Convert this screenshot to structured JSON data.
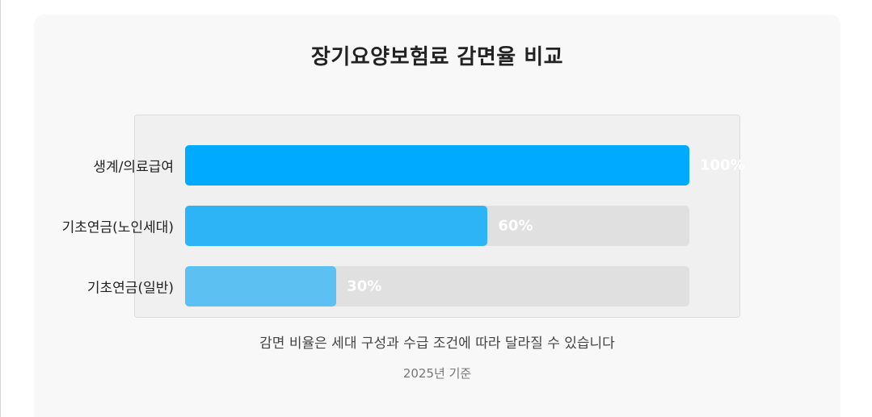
{
  "chart_data": {
    "type": "bar",
    "orientation": "horizontal",
    "title": "장기요양보험료 감면율 비교",
    "categories": [
      "생계/의료급여",
      "기초연금(노인세대)",
      "기초연금(일반)"
    ],
    "values": [
      100,
      60,
      30
    ],
    "value_labels": [
      "100%",
      "60%",
      "30%"
    ],
    "xlim": [
      0,
      100
    ],
    "colors": [
      "#00aaff",
      "#2db4f7",
      "#5cc0f2"
    ],
    "track_color": "#e0e0e0",
    "grid": false,
    "legend": "none"
  },
  "footer": {
    "note": "감면 비율은 세대 구성과 수급 조건에 따라 달라질 수 있습니다",
    "base_year": "2025년 기준"
  }
}
